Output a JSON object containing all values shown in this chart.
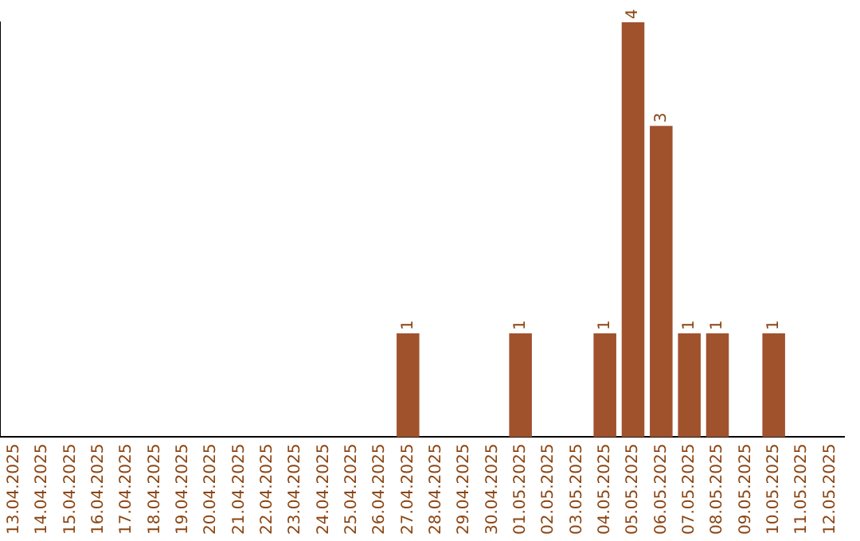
{
  "chart_data": {
    "type": "bar",
    "categories": [
      "13.04.2025",
      "14.04.2025",
      "15.04.2025",
      "16.04.2025",
      "17.04.2025",
      "18.04.2025",
      "19.04.2025",
      "20.04.2025",
      "21.04.2025",
      "22.04.2025",
      "23.04.2025",
      "24.04.2025",
      "25.04.2025",
      "26.04.2025",
      "27.04.2025",
      "28.04.2025",
      "29.04.2025",
      "30.04.2025",
      "01.05.2025",
      "02.05.2025",
      "03.05.2025",
      "04.05.2025",
      "05.05.2025",
      "06.05.2025",
      "07.05.2025",
      "08.05.2025",
      "09.05.2025",
      "10.05.2025",
      "11.05.2025",
      "12.05.2025"
    ],
    "values": [
      null,
      null,
      null,
      null,
      null,
      null,
      null,
      null,
      null,
      null,
      null,
      null,
      null,
      null,
      1,
      null,
      null,
      null,
      1,
      null,
      null,
      1,
      4,
      3,
      1,
      1,
      null,
      1,
      null,
      null
    ],
    "value_labels": [
      null,
      null,
      null,
      null,
      null,
      null,
      null,
      null,
      null,
      null,
      null,
      null,
      null,
      null,
      "1",
      null,
      null,
      null,
      "1",
      null,
      null,
      "1",
      "4",
      "3",
      "1",
      "1",
      null,
      "1",
      null,
      null
    ],
    "color": "#a0522d",
    "tick_labels": "x",
    "grid": false,
    "legend": false
  }
}
